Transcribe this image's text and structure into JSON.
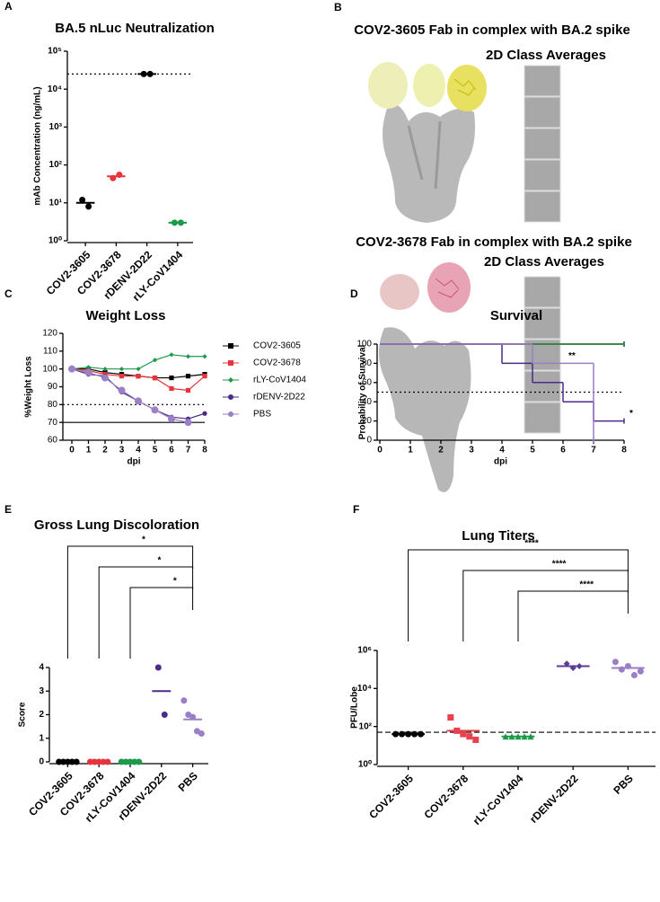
{
  "chart_data": [
    {
      "type": "dot",
      "panel_label": "A",
      "title": "BA.5 nLuc Neutralization",
      "y_label": "mAb Concentration (ng/mL)",
      "categories": [
        "COV2-3605",
        "COV2-3678",
        "rDENV-2D22",
        "rLY-CoV1404"
      ],
      "values": [
        [
          12,
          8
        ],
        [
          45,
          55
        ],
        [
          25000,
          25000
        ],
        [
          3,
          3
        ]
      ],
      "means": [
        10,
        50,
        25000,
        3
      ],
      "colors": [
        "#000000",
        "#e8333b",
        "#000000",
        "#1a9a4a"
      ],
      "markers": [
        "circle",
        "circle",
        "circle",
        "circle"
      ],
      "log_scale": true,
      "ylim": [
        1,
        100000
      ],
      "yticks": [
        {
          "value": 1,
          "label": "10⁰"
        },
        {
          "value": 10,
          "label": "10¹"
        },
        {
          "value": 100,
          "label": "10²"
        },
        {
          "value": 1000,
          "label": "10³"
        },
        {
          "value": 10000,
          "label": "10⁴"
        },
        {
          "value": 100000,
          "label": "10⁵"
        }
      ],
      "ref_lines": [
        {
          "value": 25000,
          "style": "dotted"
        }
      ]
    },
    {
      "type": "line",
      "panel_label": "C",
      "title": "Weight Loss",
      "x_label": "dpi",
      "y_label": "%Weight Loss",
      "x": [
        0,
        1,
        2,
        3,
        4,
        5,
        6,
        7,
        8
      ],
      "xlim": [
        0,
        8
      ],
      "xticks": [
        0,
        1,
        2,
        3,
        4,
        5,
        6,
        7,
        8
      ],
      "ylim": [
        60,
        120
      ],
      "yticks": [
        60,
        70,
        80,
        90,
        100,
        110,
        120
      ],
      "series": [
        {
          "name": "COV2-3605",
          "color": "#000000",
          "marker": "square",
          "values": [
            100,
            100,
            98,
            97,
            96,
            95,
            95,
            96,
            97
          ]
        },
        {
          "name": "COV2-3678",
          "color": "#e8333b",
          "marker": "square",
          "values": [
            100,
            99,
            97,
            96,
            96,
            95,
            89,
            88,
            96
          ]
        },
        {
          "name": "rLY-CoV1404",
          "color": "#1a9a4a",
          "marker": "diamond",
          "values": [
            100,
            101,
            100,
            100,
            100,
            105,
            108,
            107,
            107
          ]
        },
        {
          "name": "rDENV-2D22",
          "color": "#4b2a8a",
          "marker": "circle",
          "values": [
            100,
            97,
            96,
            87,
            82,
            77,
            73,
            72,
            75
          ]
        },
        {
          "name": "PBS",
          "color": "#9b7fc7",
          "marker": "circle",
          "values": [
            100,
            98,
            95,
            88,
            82,
            77,
            72,
            70,
            null
          ]
        }
      ],
      "ref_lines": [
        {
          "value": 80,
          "style": "dotted"
        },
        {
          "value": 70,
          "style": "solid"
        }
      ]
    },
    {
      "type": "step",
      "panel_label": "D",
      "title": "Survival",
      "x_label": "dpi",
      "y_label": "Probability of Survival",
      "x": [
        0,
        1,
        2,
        3,
        4,
        5,
        6,
        7,
        8
      ],
      "xlim": [
        0,
        8
      ],
      "xticks": [
        0,
        1,
        2,
        3,
        4,
        5,
        6,
        7,
        8
      ],
      "ylim": [
        0,
        100
      ],
      "yticks": [
        0,
        20,
        40,
        60,
        80,
        100
      ],
      "series": [
        {
          "name": "COV2-3605",
          "color": "#000000",
          "values": [
            100,
            100,
            100,
            100,
            100,
            100,
            100,
            100,
            100
          ]
        },
        {
          "name": "COV2-3678",
          "color": "#e8333b",
          "values": [
            100,
            100,
            100,
            100,
            100,
            100,
            100,
            100,
            100
          ]
        },
        {
          "name": "rLY-CoV1404",
          "color": "#1a9a4a",
          "values": [
            100,
            100,
            100,
            100,
            100,
            100,
            100,
            100,
            100
          ]
        },
        {
          "name": "rDENV-2D22",
          "color": "#4b2a8a",
          "values": [
            100,
            100,
            100,
            100,
            80,
            60,
            40,
            20,
            20
          ],
          "annotation": "*"
        },
        {
          "name": "PBS",
          "color": "#9b7fc7",
          "values": [
            100,
            100,
            100,
            100,
            100,
            80,
            80,
            0,
            null
          ],
          "annotation": "**"
        }
      ],
      "ref_lines": [
        {
          "value": 50,
          "style": "dotted"
        }
      ]
    },
    {
      "type": "dot",
      "panel_label": "E",
      "title": "Gross Lung Discoloration",
      "y_label": "Score",
      "categories": [
        "COV2-3605",
        "COV2-3678",
        "rLY-CoV1404",
        "rDENV-2D22",
        "PBS"
      ],
      "values": [
        [
          0,
          0,
          0,
          0,
          0
        ],
        [
          0,
          0,
          0,
          0,
          0
        ],
        [
          0,
          0,
          0,
          0,
          0
        ],
        [
          4,
          2
        ],
        [
          2.6,
          2,
          1.9,
          1.3,
          1.2
        ]
      ],
      "means": [
        0,
        0,
        0,
        3,
        1.8
      ],
      "colors": [
        "#000000",
        "#e8333b",
        "#1a9a4a",
        "#4b2a8a",
        "#9b7fc7"
      ],
      "markers": [
        "circle",
        "circle",
        "circle",
        "circle",
        "circle"
      ],
      "log_scale": false,
      "ylim": [
        0,
        4
      ],
      "yticks": [
        0,
        1,
        2,
        3,
        4
      ],
      "comparisons": [
        "*",
        "*",
        "*"
      ]
    },
    {
      "type": "dot",
      "panel_label": "F",
      "title": "Lung Titers",
      "y_label": "PFU/Lobe",
      "categories": [
        "COV2-3605",
        "COV2-3678",
        "rLY-CoV1404",
        "rDENV-2D22",
        "PBS"
      ],
      "values": [
        [
          40,
          40,
          40,
          40,
          40
        ],
        [
          300,
          60,
          40,
          30,
          20
        ],
        [
          30,
          30,
          30,
          30,
          30
        ],
        [
          200000,
          120000,
          150000
        ],
        [
          250000,
          100000,
          150000,
          50000,
          80000
        ]
      ],
      "means": [
        40,
        60,
        30,
        150000,
        120000
      ],
      "colors": [
        "#000000",
        "#e8414d",
        "#1a9a4a",
        "#5b3d99",
        "#9a7fc7"
      ],
      "markers": [
        "circle",
        "square",
        "triangle",
        "diamond",
        "circle"
      ],
      "log_scale": true,
      "ylim": [
        1,
        1000000
      ],
      "yticks": [
        {
          "value": 1,
          "label": "10⁰"
        },
        {
          "value": 100,
          "label": "10²"
        },
        {
          "value": 10000,
          "label": "10⁴"
        },
        {
          "value": 1000000,
          "label": "10⁶"
        }
      ],
      "ref_lines": [
        {
          "value": 50,
          "style": "dashed"
        }
      ],
      "comparisons": [
        "****",
        "****",
        "****"
      ]
    }
  ],
  "panel_b": {
    "panel_label": "B",
    "top_title": "COV2-3605 Fab in complex with BA.2 spike",
    "top_subtitle": "2D Class Averages",
    "bottom_title": "COV2-3678 Fab in complex with BA.2 spike",
    "bottom_subtitle": "2D Class Averages"
  }
}
